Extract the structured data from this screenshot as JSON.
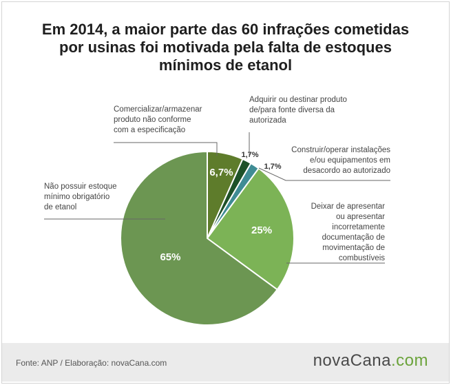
{
  "title_lines": [
    "Em 2014, a maior parte das 60 infrações cometidas",
    "por usinas foi motivada pela falta de estoques",
    "mínimos de etanol"
  ],
  "chart_data": {
    "type": "pie",
    "title": "Em 2014, a maior parte das 60 infrações cometidas por usinas foi motivada pela falta de estoques mínimos de etanol",
    "slices": [
      {
        "label": "Comercializar/armazenar produto não conforme com a especificação",
        "label_lines": [
          "Comercializar/armazenar",
          "produto não conforme",
          "com a especificação"
        ],
        "value": 6.7,
        "value_label": "6,7%",
        "color": "#5e7c2b"
      },
      {
        "label": "Adquirir ou destinar produto de/para fonte diversa da autorizada",
        "label_lines": [
          "Adquirir ou destinar produto",
          "de/para fonte diversa da",
          "autorizada"
        ],
        "value": 1.7,
        "value_label": "1,7%",
        "color": "#1e5128"
      },
      {
        "label": "Construir/operar instalações e/ou equipamentos em desacordo ao autorizado",
        "label_lines": [
          "Construir/operar instalações",
          "e/ou equipamentos em",
          "desacordo ao autorizado"
        ],
        "value": 1.7,
        "value_label": "1,7%",
        "color": "#3f8c94"
      },
      {
        "label": "Deixar de apresentar ou apresentar incorretamente documentação de movimentação de combustíveis",
        "label_lines": [
          "Deixar de apresentar",
          "ou apresentar",
          "incorretamente",
          "documentação de",
          "movimentação de",
          "combustíveis"
        ],
        "value": 25,
        "value_label": "25%",
        "color": "#7cb356"
      },
      {
        "label": "Não possuir estoque mínimo obrigatório de etanol",
        "label_lines": [
          "Não possuir estoque",
          "mínimo obrigatório",
          "de etanol"
        ],
        "value": 65,
        "value_label": "65%",
        "color": "#6c9652"
      }
    ]
  },
  "footer": {
    "source": "Fonte: ANP / Elaboração: novaCana.com",
    "logo_a": "nova",
    "logo_b": "Cana",
    "logo_c": ".com"
  }
}
